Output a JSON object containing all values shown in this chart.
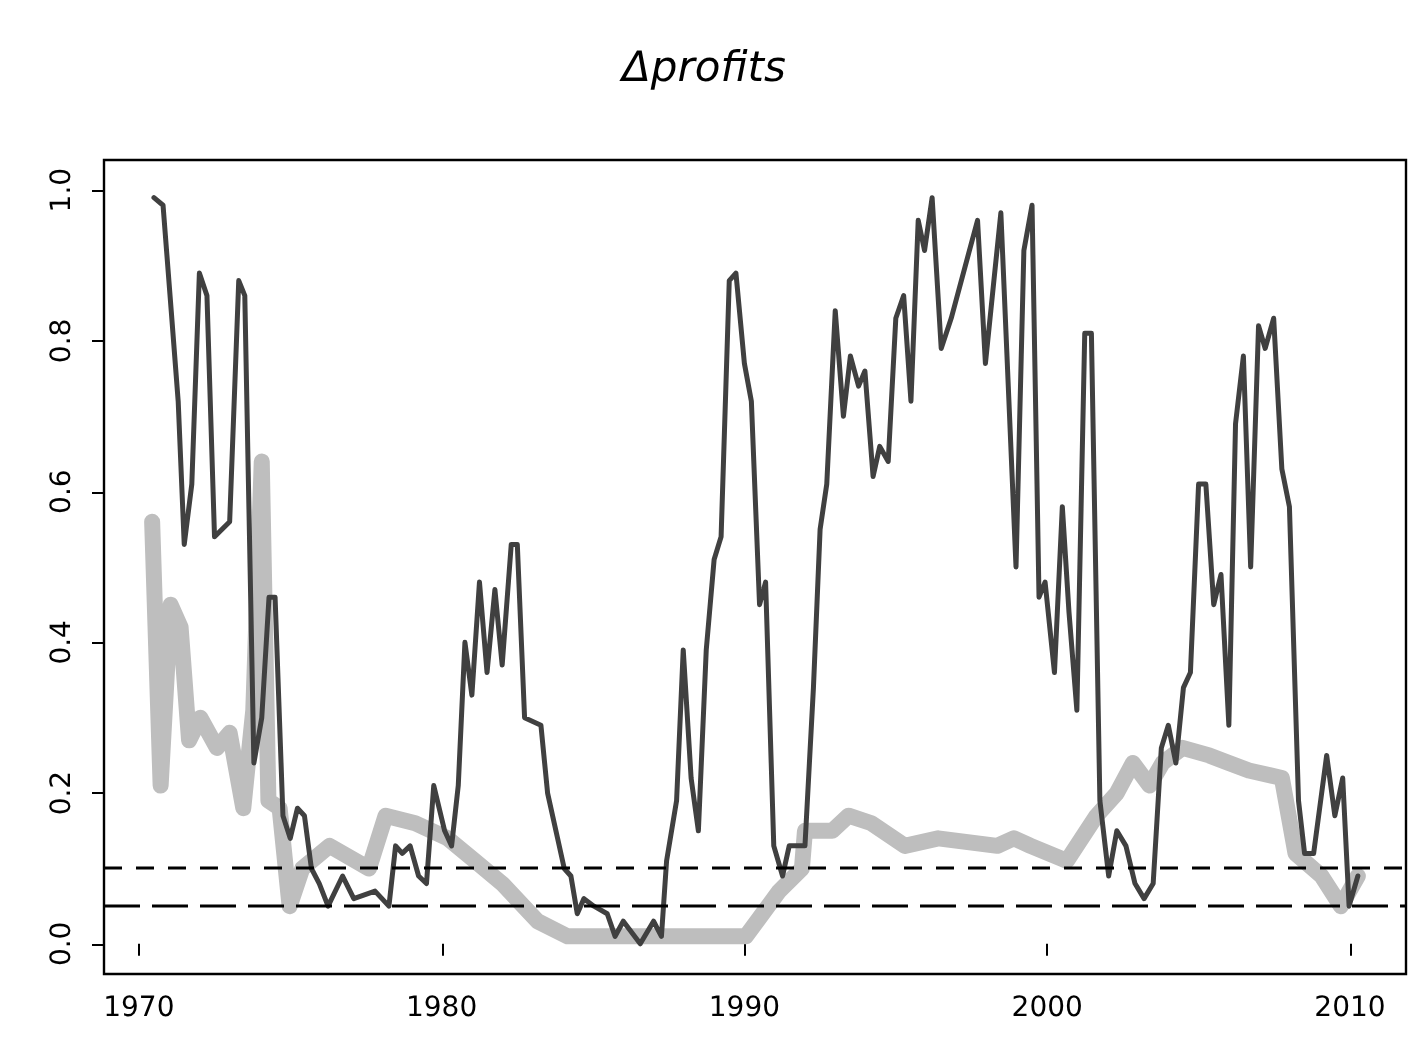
{
  "chart_data": {
    "type": "line",
    "title": "Δprofits",
    "xlim": [
      1968.85,
      2011.85
    ],
    "xticks": [
      1970,
      1980,
      1990,
      2000,
      2010
    ],
    "ylim": [
      -0.04,
      1.04
    ],
    "yticks": [
      {
        "value": 0,
        "label": "0.0"
      },
      0.2,
      0.4,
      0.6,
      0.8,
      {
        "value": 1,
        "label": "1.0"
      }
    ],
    "grid": false,
    "marker": "none",
    "line_style": "solid",
    "series": [
      {
        "color": "#bebebe",
        "x": [
          1970.44,
          1970.72,
          1971.05,
          1971.38,
          1971.66,
          1972.03,
          1972.58,
          1973.0,
          1973.45,
          1973.78,
          1974.06,
          1974.28,
          1974.65,
          1974.98,
          1975.4,
          1976.3,
          1977.6,
          1978.15,
          1979.13,
          1980.2,
          1981.1,
          1982.0,
          1983.17,
          1984.16,
          1987.43,
          1990.05,
          1991.15,
          1991.9,
          1992.0,
          1992.9,
          1993.44,
          1994.2,
          1995.3,
          1996.4,
          1998.35,
          1998.9,
          1999.45,
          2000.65,
          2001.63,
          2002.3,
          2002.83,
          2003.38,
          2003.81,
          2004.47,
          2005.35,
          2006.0,
          2006.66,
          2007.75,
          2008.2,
          2009.06,
          2009.7,
          2010.26
        ],
        "values": [
          0.56,
          0.21,
          0.45,
          0.42,
          0.27,
          0.3,
          0.26,
          0.28,
          0.18,
          0.31,
          0.64,
          0.19,
          0.18,
          0.05,
          0.1,
          0.13,
          0.1,
          0.17,
          0.16,
          0.14,
          0.11,
          0.08,
          0.03,
          0.01,
          0.01,
          0.01,
          0.07,
          0.1,
          0.15,
          0.15,
          0.17,
          0.16,
          0.13,
          0.14,
          0.13,
          0.14,
          0.13,
          0.11,
          0.17,
          0.2,
          0.24,
          0.21,
          0.24,
          0.26,
          0.25,
          0.24,
          0.23,
          0.22,
          0.12,
          0.09,
          0.05,
          0.09
        ]
      },
      {
        "color": "#404040",
        "x": [
          1970.5,
          1970.8,
          1971.07,
          1971.3,
          1971.5,
          1971.75,
          1972.0,
          1972.25,
          1972.5,
          1973.0,
          1973.3,
          1973.5,
          1973.8,
          1974.06,
          1974.3,
          1974.5,
          1974.76,
          1975.0,
          1975.24,
          1975.47,
          1975.7,
          1975.96,
          1976.25,
          1976.73,
          1977.1,
          1977.8,
          1978.26,
          1978.48,
          1978.7,
          1978.96,
          1979.24,
          1979.5,
          1979.74,
          1980.1,
          1980.33,
          1980.55,
          1980.77,
          1981.0,
          1981.25,
          1981.5,
          1981.76,
          1982.0,
          1982.3,
          1982.5,
          1982.74,
          1983.28,
          1983.5,
          1983.83,
          1984.05,
          1984.27,
          1984.48,
          1984.7,
          1985.03,
          1985.47,
          1985.73,
          1986.0,
          1986.56,
          1987.0,
          1987.26,
          1987.43,
          1987.76,
          1987.98,
          1988.24,
          1988.48,
          1988.74,
          1989.0,
          1989.23,
          1989.5,
          1989.72,
          1990.0,
          1990.23,
          1990.5,
          1990.7,
          1990.97,
          1991.26,
          1991.48,
          1992.0,
          1992.28,
          1992.5,
          1992.72,
          1993.0,
          1993.27,
          1993.5,
          1993.77,
          1993.98,
          1994.25,
          1994.47,
          1994.75,
          1995.0,
          1995.26,
          1995.5,
          1995.74,
          1995.95,
          1996.2,
          1996.5,
          1996.83,
          1997.7,
          1997.96,
          1998.24,
          1998.47,
          1998.97,
          1999.23,
          1999.5,
          1999.73,
          1999.93,
          2000.24,
          2000.5,
          2000.72,
          2000.98,
          2001.24,
          2001.46,
          2001.74,
          2002.03,
          2002.3,
          2002.6,
          2002.9,
          2003.2,
          2003.5,
          2003.77,
          2004.0,
          2004.25,
          2004.5,
          2004.73,
          2005.0,
          2005.24,
          2005.5,
          2005.74,
          2006.0,
          2006.22,
          2006.48,
          2006.72,
          2006.98,
          2007.2,
          2007.48,
          2007.75,
          2008.0,
          2008.3,
          2008.5,
          2008.8,
          2009.23,
          2009.5,
          2009.76,
          2009.97,
          2010.26
        ],
        "values": [
          0.99,
          0.98,
          0.84,
          0.72,
          0.53,
          0.61,
          0.89,
          0.86,
          0.54,
          0.56,
          0.88,
          0.86,
          0.24,
          0.3,
          0.46,
          0.46,
          0.17,
          0.14,
          0.18,
          0.17,
          0.1,
          0.08,
          0.05,
          0.09,
          0.06,
          0.07,
          0.05,
          0.13,
          0.12,
          0.13,
          0.09,
          0.08,
          0.21,
          0.15,
          0.13,
          0.21,
          0.4,
          0.33,
          0.48,
          0.36,
          0.47,
          0.37,
          0.53,
          0.53,
          0.3,
          0.29,
          0.2,
          0.14,
          0.1,
          0.09,
          0.04,
          0.06,
          0.05,
          0.04,
          0.01,
          0.03,
          0.0,
          0.03,
          0.01,
          0.11,
          0.19,
          0.39,
          0.22,
          0.15,
          0.39,
          0.51,
          0.54,
          0.88,
          0.89,
          0.77,
          0.72,
          0.45,
          0.48,
          0.13,
          0.09,
          0.13,
          0.13,
          0.34,
          0.55,
          0.61,
          0.84,
          0.7,
          0.78,
          0.74,
          0.76,
          0.62,
          0.66,
          0.64,
          0.83,
          0.86,
          0.72,
          0.96,
          0.92,
          0.99,
          0.79,
          0.83,
          0.96,
          0.77,
          0.88,
          0.97,
          0.5,
          0.92,
          0.98,
          0.46,
          0.48,
          0.36,
          0.58,
          0.44,
          0.31,
          0.81,
          0.81,
          0.19,
          0.09,
          0.15,
          0.13,
          0.08,
          0.06,
          0.08,
          0.26,
          0.29,
          0.24,
          0.34,
          0.36,
          0.61,
          0.61,
          0.45,
          0.49,
          0.29,
          0.69,
          0.78,
          0.5,
          0.82,
          0.79,
          0.83,
          0.63,
          0.58,
          0.19,
          0.12,
          0.12,
          0.25,
          0.17,
          0.22,
          0.05,
          0.09
        ]
      }
    ],
    "ref_lines": [
      {
        "axis": "y",
        "value": 0.1,
        "color": "#000000",
        "line_style": "dashed"
      },
      {
        "axis": "y",
        "value": 0.05,
        "color": "#000000",
        "line_style": "dashed"
      }
    ]
  }
}
